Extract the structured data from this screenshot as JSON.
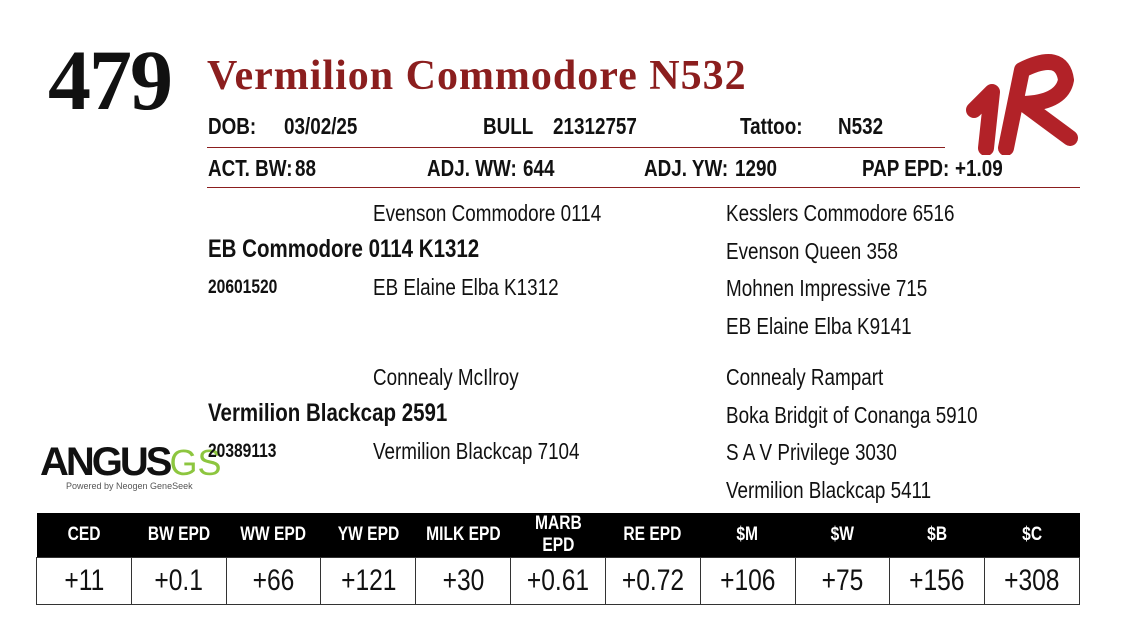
{
  "lot": "479",
  "name": "Vermilion Commodore N532",
  "info": {
    "dob_label": "DOB:",
    "dob": "03/02/25",
    "sex": "BULL",
    "registration": "21312757",
    "tattoo_label": "Tattoo:",
    "tattoo": "N532"
  },
  "performance": [
    {
      "label": "ACT. BW:",
      "value": "88"
    },
    {
      "label": "ADJ. WW:",
      "value": "644"
    },
    {
      "label": "ADJ. YW:",
      "value": "1290"
    },
    {
      "label": "PAP EPD:",
      "value": "+1.09"
    }
  ],
  "pedigree": [
    {
      "name": "EB Commodore 0114 K1312",
      "registration": "20601520",
      "sire": "Evenson Commodore 0114",
      "dam": "EB Elaine Elba K1312",
      "grandparents": [
        "Kesslers Commodore 6516",
        "Evenson Queen 358",
        "Mohnen Impressive 715",
        "EB Elaine Elba K9141"
      ]
    },
    {
      "name": "Vermilion Blackcap 2591",
      "registration": "20389113",
      "sire": "Connealy McIlroy",
      "dam": "Vermilion Blackcap 7104",
      "grandparents": [
        "Connealy Rampart",
        "Boka Bridgit of Conanga 5910",
        "S A V Privilege 3030",
        "Vermilion Blackcap 5411"
      ]
    }
  ],
  "logo": {
    "text": "ANGUS",
    "accent": "GS",
    "tagline": "Powered by Neogen GeneSeek"
  },
  "epd": {
    "headers": [
      "CED",
      "BW EPD",
      "WW EPD",
      "YW EPD",
      "MILK EPD",
      "MARB EPD",
      "RE EPD",
      "$M",
      "$W",
      "$B",
      "$C"
    ],
    "values": [
      "+11",
      "+0.1",
      "+66",
      "+121",
      "+30",
      "+0.61",
      "+0.72",
      "+106",
      "+75",
      "+156",
      "+308"
    ]
  }
}
